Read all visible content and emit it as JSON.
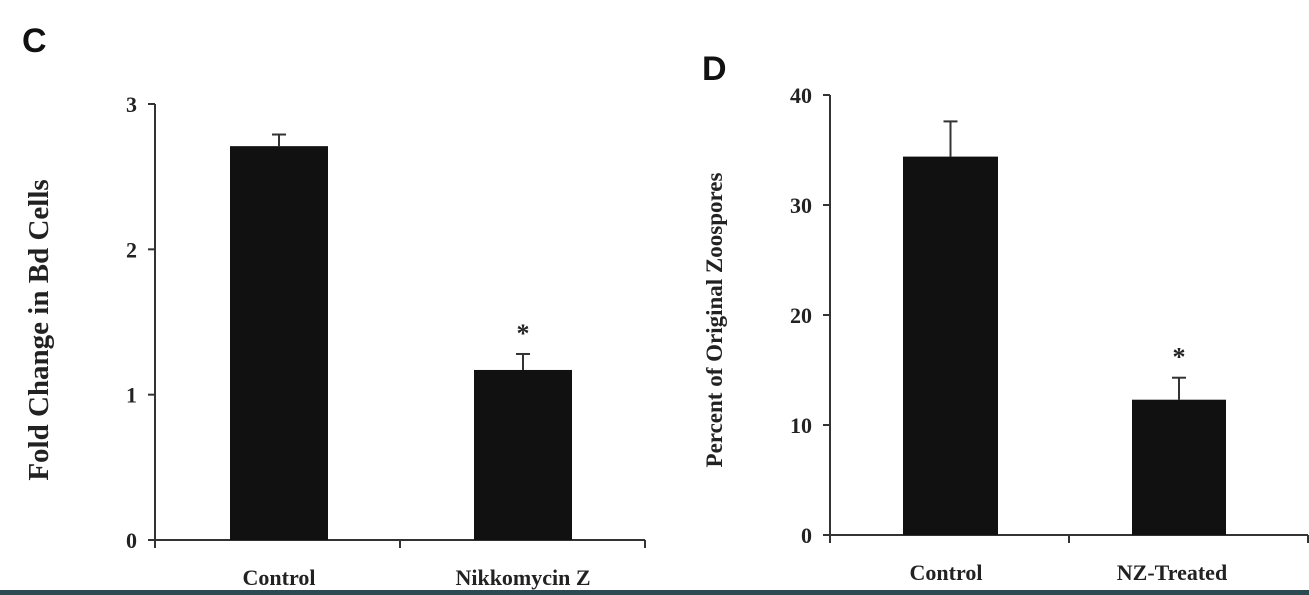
{
  "chart_data": [
    {
      "panel_label": "C",
      "type": "bar",
      "categories": [
        "Control",
        "Nikkomycin Z"
      ],
      "values": [
        2.71,
        1.17
      ],
      "error": [
        0.08,
        0.11
      ],
      "significance": [
        "",
        "*"
      ],
      "xlabel": "",
      "ylabel": "Fold Change in Bd Cells",
      "ylim": [
        0,
        3
      ],
      "yticks": [
        0,
        1,
        2,
        3
      ],
      "bar_color": "#111111",
      "grid": false
    },
    {
      "panel_label": "D",
      "type": "bar",
      "categories": [
        "Control",
        "NZ-Treated"
      ],
      "values": [
        34.4,
        12.3
      ],
      "error": [
        3.2,
        2.0
      ],
      "significance": [
        "",
        "*"
      ],
      "xlabel": "",
      "ylabel": "Percent of Original Zoospores",
      "ylim": [
        0,
        40
      ],
      "yticks": [
        0,
        10,
        20,
        30,
        40
      ],
      "bar_color": "#111111",
      "grid": false
    }
  ]
}
